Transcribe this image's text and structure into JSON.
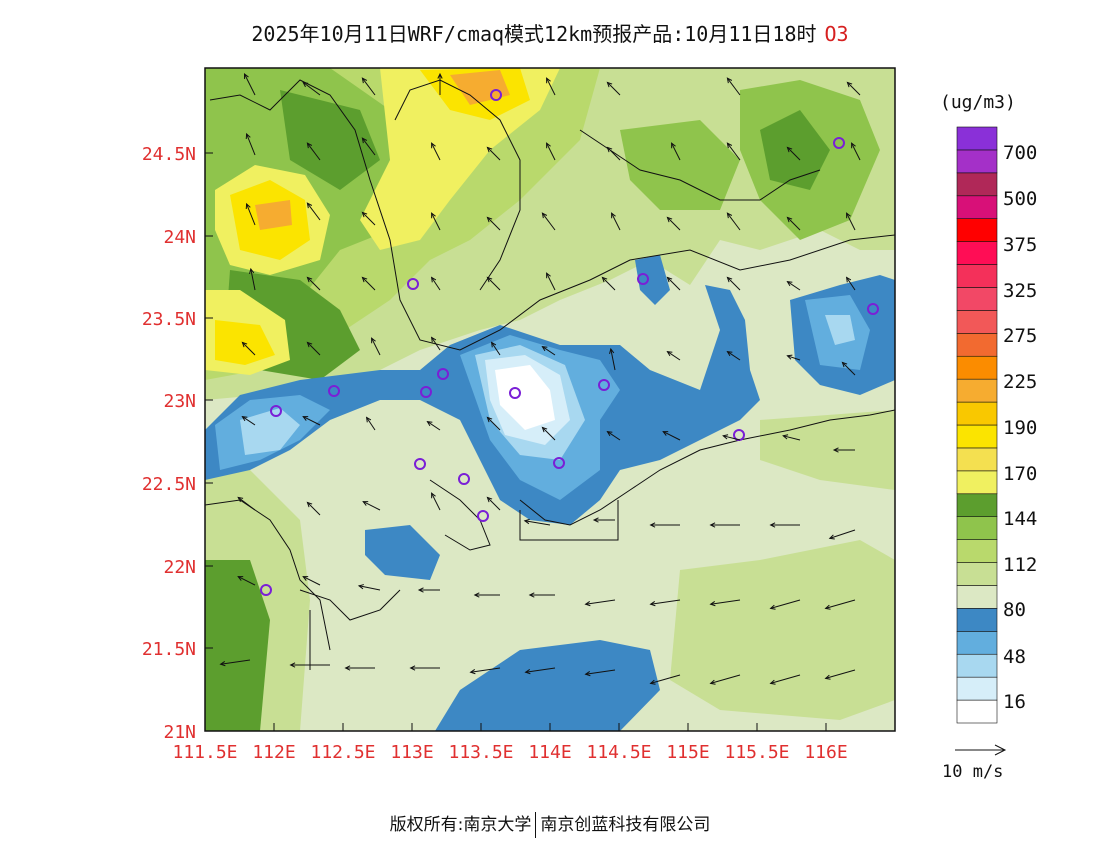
{
  "title": {
    "text": "2025年10月11日WRF/cmaq模式12km预报产品:10月11日18时",
    "species": "O3"
  },
  "axes": {
    "lat_labels": [
      "24.5N",
      "24N",
      "23.5N",
      "23N",
      "22.5N",
      "22N",
      "21.5N",
      "21N"
    ],
    "lon_labels": [
      "111.5E",
      "112E",
      "112.5E",
      "113E",
      "113.5E",
      "114E",
      "114.5E",
      "115E",
      "115.5E",
      "116E"
    ],
    "label_color": "#e03030"
  },
  "legend": {
    "unit": "(ug/m3)",
    "levels": [
      "700",
      "500",
      "375",
      "325",
      "275",
      "225",
      "190",
      "170",
      "144",
      "112",
      "80",
      "48",
      "16"
    ],
    "colors": [
      {
        "name": "bin-0-16",
        "hex": "#ffffff"
      },
      {
        "name": "bin-16-32",
        "hex": "#d6eef9"
      },
      {
        "name": "bin-32-48",
        "hex": "#a8d8f0"
      },
      {
        "name": "bin-48-64",
        "hex": "#62aede"
      },
      {
        "name": "bin-64-80",
        "hex": "#3d88c4"
      },
      {
        "name": "bin-80-96",
        "hex": "#dce8c4"
      },
      {
        "name": "bin-96-112",
        "hex": "#c8df94"
      },
      {
        "name": "bin-112-128",
        "hex": "#b9d96c"
      },
      {
        "name": "bin-128-144",
        "hex": "#8fc44c"
      },
      {
        "name": "bin-144-157",
        "hex": "#5c9e2e"
      },
      {
        "name": "bin-157-170",
        "hex": "#f0f060"
      },
      {
        "name": "bin-170-180",
        "hex": "#f4e050"
      },
      {
        "name": "bin-180-190",
        "hex": "#fbe400"
      },
      {
        "name": "bin-190-207",
        "hex": "#f9c800"
      },
      {
        "name": "bin-207-225",
        "hex": "#f6ac30"
      },
      {
        "name": "bin-225-250",
        "hex": "#fb8c00"
      },
      {
        "name": "bin-250-275",
        "hex": "#f26a30"
      },
      {
        "name": "bin-275-300",
        "hex": "#f25858"
      },
      {
        "name": "bin-300-325",
        "hex": "#f24866"
      },
      {
        "name": "bin-325-350",
        "hex": "#f4305a"
      },
      {
        "name": "bin-350-375",
        "hex": "#ff0d55"
      },
      {
        "name": "bin-375-437",
        "hex": "#ff0000"
      },
      {
        "name": "bin-437-500",
        "hex": "#d81078"
      },
      {
        "name": "bin-500-600",
        "hex": "#b02858"
      },
      {
        "name": "bin-600-700",
        "hex": "#a430c8"
      },
      {
        "name": "bin-700-plus",
        "hex": "#8a30d8"
      }
    ]
  },
  "wind_reference": {
    "label": "10 m/s"
  },
  "footer": {
    "left": "版权所有:南京大学",
    "right": "南京创蓝科技有限公司"
  }
}
